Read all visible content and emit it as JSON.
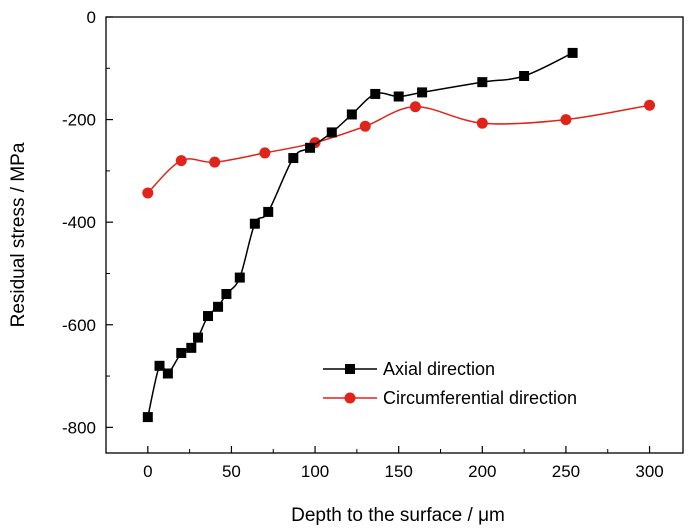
{
  "chart_data": {
    "type": "line",
    "xlabel": "Depth to the surface / μm",
    "ylabel": "Residual stress / MPa",
    "xlim": [
      -25,
      320
    ],
    "ylim": [
      -850,
      0
    ],
    "x_ticks": [
      0,
      50,
      100,
      150,
      200,
      250,
      300
    ],
    "y_ticks": [
      0,
      -200,
      -400,
      -600,
      -800
    ],
    "grid": false,
    "legend_position": "lower-right",
    "series": [
      {
        "name": "Axial direction",
        "color": "#000000",
        "marker": "square",
        "x": [
          0,
          7,
          12,
          20,
          26,
          30,
          36,
          42,
          47,
          55,
          64,
          72,
          87,
          97,
          110,
          122,
          136,
          150,
          164,
          200,
          225,
          254
        ],
        "y": [
          -780,
          -680,
          -695,
          -655,
          -645,
          -625,
          -583,
          -565,
          -540,
          -508,
          -403,
          -380,
          -275,
          -255,
          -225,
          -190,
          -150,
          -155,
          -147,
          -127,
          -115,
          -70
        ]
      },
      {
        "name": "Circumferential direction",
        "color": "#e0241b",
        "marker": "circle",
        "x": [
          0,
          20,
          40,
          70,
          100,
          130,
          160,
          200,
          250,
          300
        ],
        "y": [
          -343,
          -280,
          -283,
          -265,
          -245,
          -213,
          -175,
          -207,
          -200,
          -172
        ]
      }
    ]
  }
}
